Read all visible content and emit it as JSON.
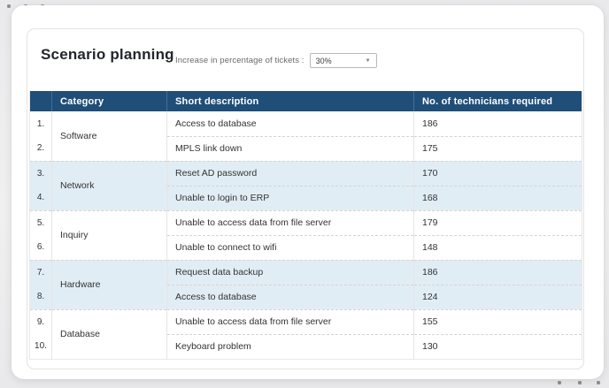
{
  "decor": {
    "dots_top": [
      "",
      "",
      ""
    ],
    "dots_bottom": [
      "",
      "",
      ""
    ]
  },
  "header": {
    "title": "Scenario planning",
    "filter_label": "Increase in percentage of tickets :",
    "filter_value": "30%",
    "chevron_icon": "▼"
  },
  "table": {
    "columns": [
      "",
      "Category",
      "Short description",
      "No. of technicians required"
    ],
    "rows": [
      {
        "index": "1.",
        "category": "Software",
        "description": "Access to database",
        "technicians": "186"
      },
      {
        "index": "2.",
        "category": "",
        "description": "MPLS link down",
        "technicians": "175"
      },
      {
        "index": "3.",
        "category": "Network",
        "description": "Reset AD password",
        "technicians": "170"
      },
      {
        "index": "4.",
        "category": "",
        "description": "Unable to login to ERP",
        "technicians": "168"
      },
      {
        "index": "5.",
        "category": "Inquiry",
        "description": "Unable to access data from file server",
        "technicians": "179"
      },
      {
        "index": "6.",
        "category": "",
        "description": "Unable to connect to wifi",
        "technicians": "148"
      },
      {
        "index": "7.",
        "category": "Hardware",
        "description": "Request data backup",
        "technicians": "186"
      },
      {
        "index": "8.",
        "category": "",
        "description": "Access to database",
        "technicians": "124"
      },
      {
        "index": "9.",
        "category": "Database",
        "description": "Unable to access data from file server",
        "technicians": "155"
      },
      {
        "index": "10.",
        "category": "",
        "description": "Keyboard problem",
        "technicians": "130"
      }
    ]
  },
  "colors": {
    "header_bg": "#1f4e79",
    "alt_row_bg": "#e1edf5",
    "dashed_divider": "#d8d2d2"
  }
}
